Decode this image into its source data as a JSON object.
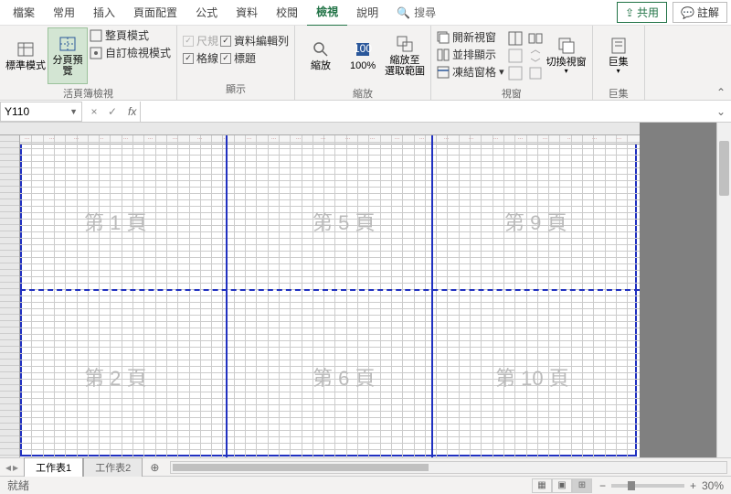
{
  "menu": {
    "tabs": [
      "檔案",
      "常用",
      "插入",
      "頁面配置",
      "公式",
      "資料",
      "校閱",
      "檢視",
      "說明"
    ],
    "active": 7,
    "search_label": "搜尋",
    "share": "共用",
    "comment": "註解"
  },
  "ribbon": {
    "g1": {
      "big": [
        {
          "label": "標準模式"
        },
        {
          "label": "分頁預覽"
        }
      ],
      "small": [
        {
          "label": "整頁模式"
        },
        {
          "label": "自訂檢視模式"
        }
      ],
      "group": "活頁簿檢視"
    },
    "g2": {
      "checks": [
        {
          "label": "尺規",
          "on": true,
          "dis": true
        },
        {
          "label": "資料編輯列",
          "on": true
        },
        {
          "label": "格線",
          "on": true
        },
        {
          "label": "標題",
          "on": true
        }
      ],
      "group": "顯示"
    },
    "g3": {
      "big": [
        {
          "label": "縮放"
        },
        {
          "label": "100%"
        },
        {
          "label": "縮放至\n選取範圍"
        }
      ],
      "group": "縮放"
    },
    "g4": {
      "items": [
        "開新視窗",
        "並排顯示",
        "凍結窗格"
      ],
      "group": "視窗",
      "switch": "切換視窗"
    },
    "g5": {
      "big": [
        {
          "label": "巨集"
        }
      ],
      "group": "巨集"
    }
  },
  "namebox": "Y110",
  "pages": [
    "第 1 頁",
    "第 5 頁",
    "第 9 頁",
    "第 2 頁",
    "第 6 頁",
    "第 10 頁"
  ],
  "sheets": {
    "tabs": [
      "工作表1",
      "工作表2"
    ],
    "active": 0
  },
  "status": {
    "ready": "就緒"
  },
  "zoom": {
    "level": "30%"
  },
  "style": {
    "accent": "#217346",
    "pageBorder": "#2030c0",
    "gridline": "#cccccc",
    "grayArea": "#808080"
  }
}
